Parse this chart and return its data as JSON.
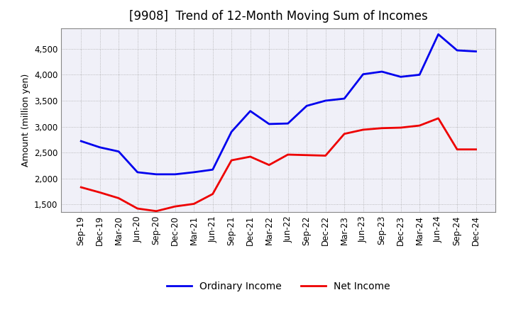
{
  "title": "[9908]  Trend of 12-Month Moving Sum of Incomes",
  "ylabel": "Amount (million yen)",
  "ylim": [
    1350,
    4900
  ],
  "yticks": [
    1500,
    2000,
    2500,
    3000,
    3500,
    4000,
    4500
  ],
  "background_color": "#ffffff",
  "plot_bg_color": "#f0f0f8",
  "grid_color": "#aaaaaa",
  "x_labels": [
    "Sep-19",
    "Dec-19",
    "Mar-20",
    "Jun-20",
    "Sep-20",
    "Dec-20",
    "Mar-21",
    "Jun-21",
    "Sep-21",
    "Dec-21",
    "Mar-22",
    "Jun-22",
    "Sep-22",
    "Dec-22",
    "Mar-23",
    "Jun-23",
    "Sep-23",
    "Dec-23",
    "Mar-24",
    "Jun-24",
    "Sep-24",
    "Dec-24"
  ],
  "ordinary_income": [
    2720,
    2600,
    2520,
    2120,
    2080,
    2080,
    2120,
    2170,
    2900,
    3300,
    3050,
    3060,
    3400,
    3500,
    3540,
    4010,
    4060,
    3960,
    4000,
    4780,
    4470,
    4450
  ],
  "net_income": [
    1830,
    1730,
    1620,
    1420,
    1370,
    1460,
    1510,
    1700,
    2350,
    2420,
    2260,
    2460,
    2450,
    2440,
    2860,
    2940,
    2970,
    2980,
    3020,
    3160,
    2560,
    2560
  ],
  "ordinary_color": "#0000ee",
  "net_color": "#ee0000",
  "line_width": 2.0,
  "title_fontsize": 12,
  "label_fontsize": 9,
  "tick_fontsize": 8.5,
  "legend_fontsize": 10
}
